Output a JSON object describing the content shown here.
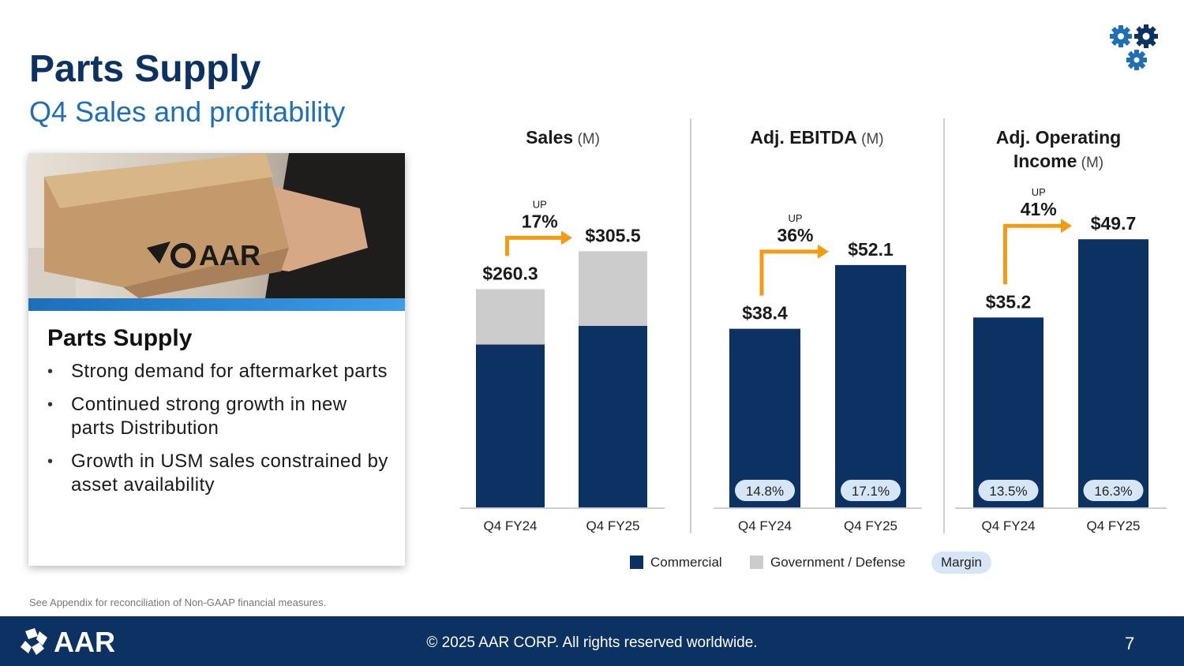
{
  "header": {
    "title": "Parts Supply",
    "subtitle": "Q4 Sales and profitability"
  },
  "card": {
    "photo_logo": "AAR",
    "title": "Parts Supply",
    "bullets": [
      "Strong demand for aftermarket parts",
      "Continued strong growth in new parts Distribution",
      "Growth in USM sales constrained by asset availability"
    ]
  },
  "footnote": "See Appendix for reconciliation of Non-GAAP financial measures.",
  "legend": {
    "commercial": "Commercial",
    "government": "Government / Defense",
    "margin": "Margin"
  },
  "colors": {
    "commercial": "#0b3263",
    "government": "#cccccc",
    "arrow": "#f39c12",
    "margin_pill": "#d6e6f7"
  },
  "footer": {
    "logo": "AAR",
    "copyright": "© 2025 AAR CORP. All rights reserved worldwide.",
    "page": "7"
  },
  "chart_data": [
    {
      "type": "bar",
      "title": "Sales",
      "unit": "(M)",
      "categories": [
        "Q4 FY24",
        "Q4 FY25"
      ],
      "series": [
        {
          "name": "Commercial",
          "values": [
            194.3,
            216.5
          ]
        },
        {
          "name": "Government / Defense",
          "values": [
            66.0,
            89.0
          ]
        }
      ],
      "totals": [
        "$260.3",
        "$305.5"
      ],
      "change": {
        "label": "UP",
        "value": "17%"
      }
    },
    {
      "type": "bar",
      "title": "Adj. EBITDA",
      "unit": "(M)",
      "categories": [
        "Q4 FY24",
        "Q4 FY25"
      ],
      "series": [
        {
          "name": "Commercial",
          "values": [
            38.4,
            52.1
          ]
        }
      ],
      "totals": [
        "$38.4",
        "$52.1"
      ],
      "margins": [
        "14.8%",
        "17.1%"
      ],
      "change": {
        "label": "UP",
        "value": "36%"
      }
    },
    {
      "type": "bar",
      "title": "Adj. Operating Income",
      "unit": "(M)",
      "categories": [
        "Q4 FY24",
        "Q4 FY25"
      ],
      "series": [
        {
          "name": "Commercial",
          "values": [
            35.2,
            49.7
          ]
        }
      ],
      "totals": [
        "$35.2",
        "$49.7"
      ],
      "margins": [
        "13.5%",
        "16.3%"
      ],
      "change": {
        "label": "UP",
        "value": "41%"
      }
    }
  ]
}
